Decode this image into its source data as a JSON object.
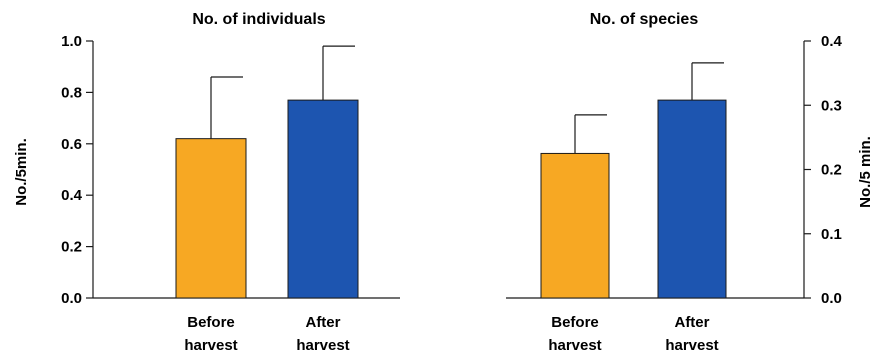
{
  "chart_data": [
    {
      "type": "bar",
      "title": "No. of individuals",
      "ylabel": "No./5min.",
      "ylim": [
        0,
        1.0
      ],
      "yticks": [
        "0.0",
        "0.2",
        "0.4",
        "0.6",
        "0.8",
        "1.0"
      ],
      "ytick_values": [
        0,
        0.2,
        0.4,
        0.6,
        0.8,
        1.0
      ],
      "y_axis_side": "left",
      "categories": [
        [
          "Before",
          "harvest"
        ],
        [
          "After",
          "harvest"
        ]
      ],
      "values": [
        0.62,
        0.77
      ],
      "errors": [
        0.24,
        0.21
      ],
      "colors": [
        "#f7a823",
        "#1d55b0"
      ]
    },
    {
      "type": "bar",
      "title": "No. of species",
      "ylabel": "No./5 min.",
      "ylim": [
        0,
        0.4
      ],
      "yticks": [
        "0.0",
        "0.1",
        "0.2",
        "0.3",
        "0.4"
      ],
      "ytick_values": [
        0,
        0.1,
        0.2,
        0.3,
        0.4
      ],
      "y_axis_side": "right",
      "categories": [
        [
          "Before",
          "harvest"
        ],
        [
          "After",
          "harvest"
        ]
      ],
      "values": [
        0.225,
        0.308
      ],
      "errors": [
        0.06,
        0.058
      ],
      "colors": [
        "#f7a823",
        "#1d55b0"
      ]
    }
  ]
}
